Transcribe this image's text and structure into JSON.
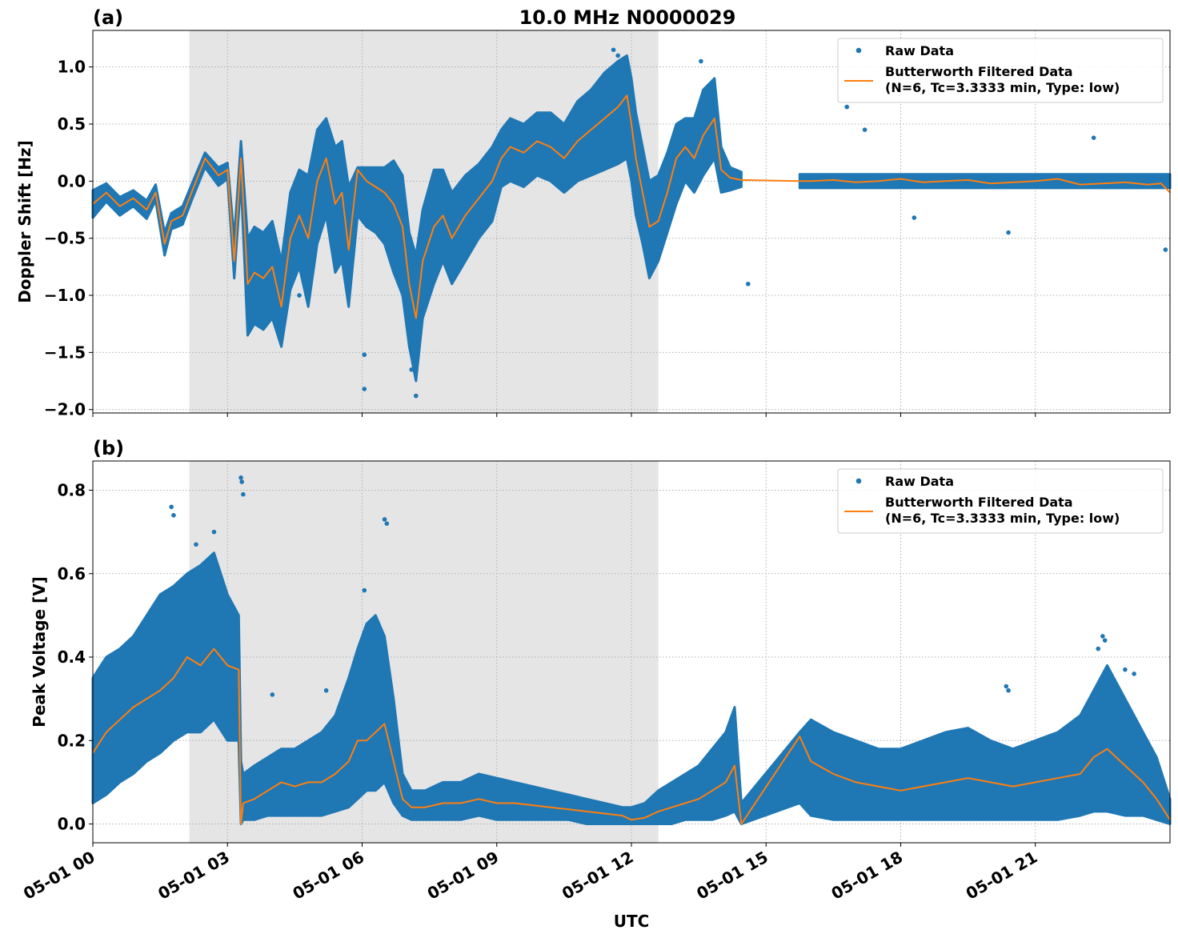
{
  "figure": {
    "title": "10.0 MHz N0000029",
    "xlabel": "UTC"
  },
  "legend": {
    "raw": "Raw Data",
    "filtered_line1": "Butterworth Filtered Data",
    "filtered_line2": "(N=6, Tc=3.3333 min, Type: low)",
    "placement": "top-right"
  },
  "colors": {
    "raw": "#1f77b4",
    "filtered": "#ff7f0e",
    "shade": "#e5e5e5",
    "grid": "#b0b0b0"
  },
  "chart_data": [
    {
      "type": "scatter",
      "panel": "(a)",
      "ylabel": "Doppler Shift [Hz]",
      "xlim": [
        0,
        24
      ],
      "ylim": [
        -2.03,
        1.32
      ],
      "x_unit": "hours UTC on 05-01",
      "x_tick_values": [
        0,
        3,
        6,
        9,
        12,
        15,
        18,
        21
      ],
      "x_tick_labels": [
        "05-01 00",
        "05-01 03",
        "05-01 06",
        "05-01 09",
        "05-01 12",
        "05-01 15",
        "05-01 18",
        "05-01 21"
      ],
      "y_ticks": [
        1.0,
        0.5,
        0.0,
        -0.5,
        -1.0,
        -1.5,
        -2.0
      ],
      "y_tick_labels": [
        "1.0",
        "0.5",
        "0.0",
        "−0.5",
        "−1.0",
        "−1.5",
        "−2.0"
      ],
      "grid": true,
      "shaded_x": [
        2.15,
        12.6
      ],
      "gap": [
        14.45,
        15.75
      ],
      "series": [
        {
          "name": "Butterworth Filtered Data",
          "x": [
            0,
            0.3,
            0.6,
            0.9,
            1.2,
            1.4,
            1.6,
            1.75,
            2.0,
            2.2,
            2.5,
            2.8,
            3.0,
            3.15,
            3.3,
            3.45,
            3.6,
            3.8,
            4.0,
            4.2,
            4.4,
            4.6,
            4.8,
            5.0,
            5.2,
            5.4,
            5.55,
            5.7,
            5.9,
            6.1,
            6.3,
            6.5,
            6.7,
            6.9,
            7.05,
            7.2,
            7.35,
            7.6,
            7.8,
            8.0,
            8.3,
            8.6,
            8.9,
            9.1,
            9.3,
            9.6,
            9.9,
            10.2,
            10.5,
            10.8,
            11.1,
            11.4,
            11.7,
            11.9,
            12.0,
            12.1,
            12.25,
            12.4,
            12.6,
            12.8,
            13.0,
            13.2,
            13.4,
            13.6,
            13.85,
            14.0,
            14.2,
            14.45,
            15.75,
            16.0,
            16.5,
            17.0,
            17.5,
            18.0,
            18.5,
            19.0,
            19.5,
            20.0,
            20.5,
            21.0,
            21.5,
            22.0,
            22.5,
            23.0,
            23.5,
            23.8,
            24.0
          ],
          "y": [
            -0.2,
            -0.1,
            -0.22,
            -0.15,
            -0.25,
            -0.1,
            -0.55,
            -0.35,
            -0.3,
            -0.1,
            0.2,
            0.05,
            0.1,
            -0.7,
            0.2,
            -0.9,
            -0.8,
            -0.85,
            -0.75,
            -1.1,
            -0.5,
            -0.3,
            -0.5,
            0.0,
            0.2,
            -0.2,
            -0.1,
            -0.6,
            0.1,
            0.0,
            -0.05,
            -0.1,
            -0.2,
            -0.4,
            -0.9,
            -1.2,
            -0.7,
            -0.4,
            -0.3,
            -0.5,
            -0.3,
            -0.15,
            0.0,
            0.2,
            0.3,
            0.25,
            0.35,
            0.3,
            0.2,
            0.35,
            0.45,
            0.55,
            0.65,
            0.75,
            0.5,
            0.2,
            -0.1,
            -0.4,
            -0.35,
            -0.1,
            0.2,
            0.3,
            0.2,
            0.4,
            0.55,
            0.1,
            0.03,
            0.01,
            0.0,
            0.0,
            0.01,
            -0.01,
            0.0,
            0.02,
            -0.01,
            0.0,
            0.01,
            -0.02,
            -0.01,
            0.0,
            0.02,
            -0.03,
            -0.02,
            -0.01,
            -0.03,
            -0.02,
            -0.1
          ]
        },
        {
          "name": "Raw Data",
          "band_x": [
            0,
            0.3,
            0.6,
            0.9,
            1.2,
            1.4,
            1.6,
            1.75,
            2.0,
            2.2,
            2.5,
            2.8,
            3.0,
            3.15,
            3.3,
            3.45,
            3.6,
            3.8,
            4.0,
            4.2,
            4.4,
            4.6,
            4.8,
            5.0,
            5.2,
            5.4,
            5.55,
            5.7,
            5.9,
            6.1,
            6.3,
            6.5,
            6.7,
            6.9,
            7.05,
            7.2,
            7.35,
            7.6,
            7.8,
            8.0,
            8.3,
            8.6,
            8.9,
            9.1,
            9.3,
            9.6,
            9.9,
            10.2,
            10.5,
            10.8,
            11.1,
            11.4,
            11.7,
            11.9,
            12.0,
            12.1,
            12.25,
            12.4,
            12.6,
            12.8,
            13.0,
            13.2,
            13.4,
            13.6,
            13.85,
            14.0,
            14.2,
            14.45
          ],
          "band_low": [
            -0.32,
            -0.18,
            -0.3,
            -0.22,
            -0.33,
            -0.17,
            -0.65,
            -0.42,
            -0.38,
            -0.17,
            0.12,
            -0.04,
            0.02,
            -0.85,
            0.0,
            -1.35,
            -1.25,
            -1.3,
            -1.2,
            -1.45,
            -0.95,
            -0.75,
            -1.1,
            -0.55,
            -0.3,
            -0.8,
            -0.7,
            -1.1,
            -0.3,
            -0.4,
            -0.45,
            -0.55,
            -0.8,
            -1.0,
            -1.45,
            -1.75,
            -1.2,
            -0.9,
            -0.7,
            -0.9,
            -0.7,
            -0.5,
            -0.35,
            -0.05,
            0.0,
            -0.05,
            0.05,
            0.0,
            -0.1,
            0.0,
            0.05,
            0.1,
            0.15,
            0.2,
            0.0,
            -0.3,
            -0.55,
            -0.85,
            -0.7,
            -0.45,
            -0.2,
            0.0,
            -0.1,
            0.05,
            0.2,
            -0.1,
            -0.08,
            -0.05
          ],
          "band_high": [
            -0.08,
            -0.02,
            -0.14,
            -0.08,
            -0.17,
            -0.03,
            -0.45,
            -0.28,
            -0.22,
            -0.03,
            0.25,
            0.12,
            0.16,
            -0.5,
            0.35,
            -0.5,
            -0.4,
            -0.45,
            -0.35,
            -0.7,
            -0.1,
            0.1,
            0.05,
            0.45,
            0.55,
            0.3,
            0.35,
            -0.05,
            0.12,
            0.12,
            0.12,
            0.12,
            0.18,
            0.05,
            -0.45,
            -0.65,
            -0.25,
            0.1,
            0.1,
            -0.1,
            0.05,
            0.15,
            0.3,
            0.45,
            0.55,
            0.5,
            0.6,
            0.6,
            0.5,
            0.7,
            0.8,
            0.95,
            1.05,
            1.1,
            0.9,
            0.6,
            0.3,
            0.0,
            0.05,
            0.25,
            0.5,
            0.55,
            0.55,
            0.8,
            0.9,
            0.3,
            0.12,
            0.08
          ],
          "band2_x": [
            15.75,
            24.0
          ],
          "band2_low": [
            -0.06,
            -0.06
          ],
          "band2_high": [
            0.06,
            0.06
          ],
          "scatter_x": [
            4.6,
            6.05,
            6.05,
            7.2,
            7.1,
            11.6,
            11.7,
            13.55,
            14.6,
            16.8,
            17.2,
            18.3,
            20.4,
            22.3,
            23.9,
            23.5
          ],
          "scatter_y": [
            -1.0,
            -1.52,
            -1.82,
            -1.88,
            -1.65,
            1.15,
            1.1,
            1.05,
            -0.9,
            0.65,
            0.45,
            -0.32,
            -0.45,
            0.38,
            -0.6,
            -0.05
          ]
        }
      ]
    },
    {
      "type": "scatter",
      "panel": "(b)",
      "ylabel": "Peak Voltage [V]",
      "xlim": [
        0,
        24
      ],
      "ylim": [
        -0.045,
        0.87
      ],
      "x_unit": "hours UTC on 05-01",
      "x_tick_values": [
        0,
        3,
        6,
        9,
        12,
        15,
        18,
        21
      ],
      "x_tick_labels": [
        "05-01 00",
        "05-01 03",
        "05-01 06",
        "05-01 09",
        "05-01 12",
        "05-01 15",
        "05-01 18",
        "05-01 21"
      ],
      "y_ticks": [
        0.8,
        0.6,
        0.4,
        0.2,
        0.0
      ],
      "y_tick_labels": [
        "0.8",
        "0.6",
        "0.4",
        "0.2",
        "0.0"
      ],
      "grid": true,
      "shaded_x": [
        2.15,
        12.6
      ],
      "gap": [
        14.45,
        15.75
      ],
      "series": [
        {
          "name": "Butterworth Filtered Data",
          "x": [
            0,
            0.3,
            0.6,
            0.9,
            1.2,
            1.5,
            1.8,
            2.1,
            2.4,
            2.7,
            3.0,
            3.25,
            3.3,
            3.35,
            3.6,
            3.9,
            4.2,
            4.5,
            4.8,
            5.1,
            5.4,
            5.7,
            5.9,
            6.1,
            6.3,
            6.5,
            6.7,
            6.9,
            7.1,
            7.4,
            7.8,
            8.2,
            8.6,
            9.0,
            9.4,
            9.8,
            10.2,
            10.6,
            11.0,
            11.4,
            11.8,
            12.0,
            12.3,
            12.6,
            12.9,
            13.2,
            13.5,
            13.8,
            14.1,
            14.3,
            14.45,
            15.75,
            16.0,
            16.5,
            17.0,
            17.5,
            18.0,
            18.5,
            19.0,
            19.5,
            20.0,
            20.5,
            21.0,
            21.5,
            22.0,
            22.3,
            22.6,
            23.0,
            23.4,
            23.7,
            24.0
          ],
          "y": [
            0.17,
            0.22,
            0.25,
            0.28,
            0.3,
            0.32,
            0.35,
            0.4,
            0.38,
            0.42,
            0.38,
            0.37,
            0.0,
            0.05,
            0.06,
            0.08,
            0.1,
            0.09,
            0.1,
            0.1,
            0.12,
            0.15,
            0.2,
            0.2,
            0.22,
            0.24,
            0.15,
            0.06,
            0.04,
            0.04,
            0.05,
            0.05,
            0.06,
            0.05,
            0.05,
            0.045,
            0.04,
            0.035,
            0.03,
            0.025,
            0.02,
            0.01,
            0.015,
            0.03,
            0.04,
            0.05,
            0.06,
            0.08,
            0.1,
            0.14,
            0.0,
            0.21,
            0.15,
            0.12,
            0.1,
            0.09,
            0.08,
            0.09,
            0.1,
            0.11,
            0.1,
            0.09,
            0.1,
            0.11,
            0.12,
            0.16,
            0.18,
            0.14,
            0.1,
            0.06,
            0.01
          ]
        },
        {
          "name": "Raw Data",
          "band_x": [
            0,
            0.3,
            0.6,
            0.9,
            1.2,
            1.5,
            1.8,
            2.1,
            2.4,
            2.7,
            3.0,
            3.25,
            3.3,
            3.35,
            3.6,
            3.9,
            4.2,
            4.5,
            4.8,
            5.1,
            5.4,
            5.7,
            5.9,
            6.1,
            6.3,
            6.5,
            6.7,
            6.9,
            7.1,
            7.4,
            7.8,
            8.2,
            8.6,
            9.0,
            9.4,
            9.8,
            10.2,
            10.6,
            11.0,
            11.4,
            11.8,
            12.0,
            12.3,
            12.6,
            12.9,
            13.2,
            13.5,
            13.8,
            14.1,
            14.3,
            14.45,
            15.75,
            16.0,
            16.5,
            17.0,
            17.5,
            18.0,
            18.5,
            19.0,
            19.5,
            20.0,
            20.5,
            21.0,
            21.5,
            22.0,
            22.3,
            22.6,
            23.0,
            23.4,
            23.7,
            24.0
          ],
          "band_low": [
            0.05,
            0.07,
            0.1,
            0.12,
            0.15,
            0.17,
            0.2,
            0.22,
            0.22,
            0.25,
            0.2,
            0.2,
            0.0,
            0.01,
            0.01,
            0.02,
            0.02,
            0.02,
            0.02,
            0.02,
            0.03,
            0.04,
            0.06,
            0.08,
            0.08,
            0.1,
            0.05,
            0.02,
            0.01,
            0.01,
            0.01,
            0.01,
            0.02,
            0.01,
            0.01,
            0.01,
            0.01,
            0.01,
            0.0,
            0.0,
            0.0,
            0.0,
            0.0,
            0.0,
            0.0,
            0.01,
            0.01,
            0.01,
            0.02,
            0.03,
            0.0,
            0.05,
            0.02,
            0.01,
            0.01,
            0.01,
            0.01,
            0.01,
            0.01,
            0.01,
            0.01,
            0.01,
            0.01,
            0.01,
            0.02,
            0.03,
            0.03,
            0.02,
            0.02,
            0.01,
            0.0
          ],
          "band_high": [
            0.35,
            0.4,
            0.42,
            0.45,
            0.5,
            0.55,
            0.57,
            0.6,
            0.62,
            0.65,
            0.55,
            0.5,
            0.15,
            0.12,
            0.14,
            0.16,
            0.18,
            0.18,
            0.2,
            0.22,
            0.26,
            0.35,
            0.42,
            0.48,
            0.5,
            0.45,
            0.3,
            0.12,
            0.08,
            0.08,
            0.1,
            0.1,
            0.12,
            0.11,
            0.1,
            0.09,
            0.08,
            0.07,
            0.06,
            0.05,
            0.04,
            0.04,
            0.05,
            0.08,
            0.1,
            0.12,
            0.14,
            0.18,
            0.22,
            0.28,
            0.05,
            0.22,
            0.25,
            0.22,
            0.2,
            0.18,
            0.18,
            0.2,
            0.22,
            0.23,
            0.2,
            0.18,
            0.2,
            0.22,
            0.26,
            0.32,
            0.38,
            0.3,
            0.22,
            0.16,
            0.06
          ],
          "scatter_x": [
            1.75,
            1.8,
            2.3,
            2.7,
            3.3,
            3.32,
            3.35,
            4.0,
            5.2,
            6.5,
            6.55,
            6.05,
            20.35,
            20.4,
            22.5,
            22.55,
            22.4,
            23.0,
            23.2
          ],
          "scatter_y": [
            0.76,
            0.74,
            0.67,
            0.7,
            0.83,
            0.82,
            0.79,
            0.31,
            0.32,
            0.73,
            0.72,
            0.56,
            0.33,
            0.32,
            0.45,
            0.44,
            0.42,
            0.37,
            0.36
          ]
        }
      ]
    }
  ]
}
